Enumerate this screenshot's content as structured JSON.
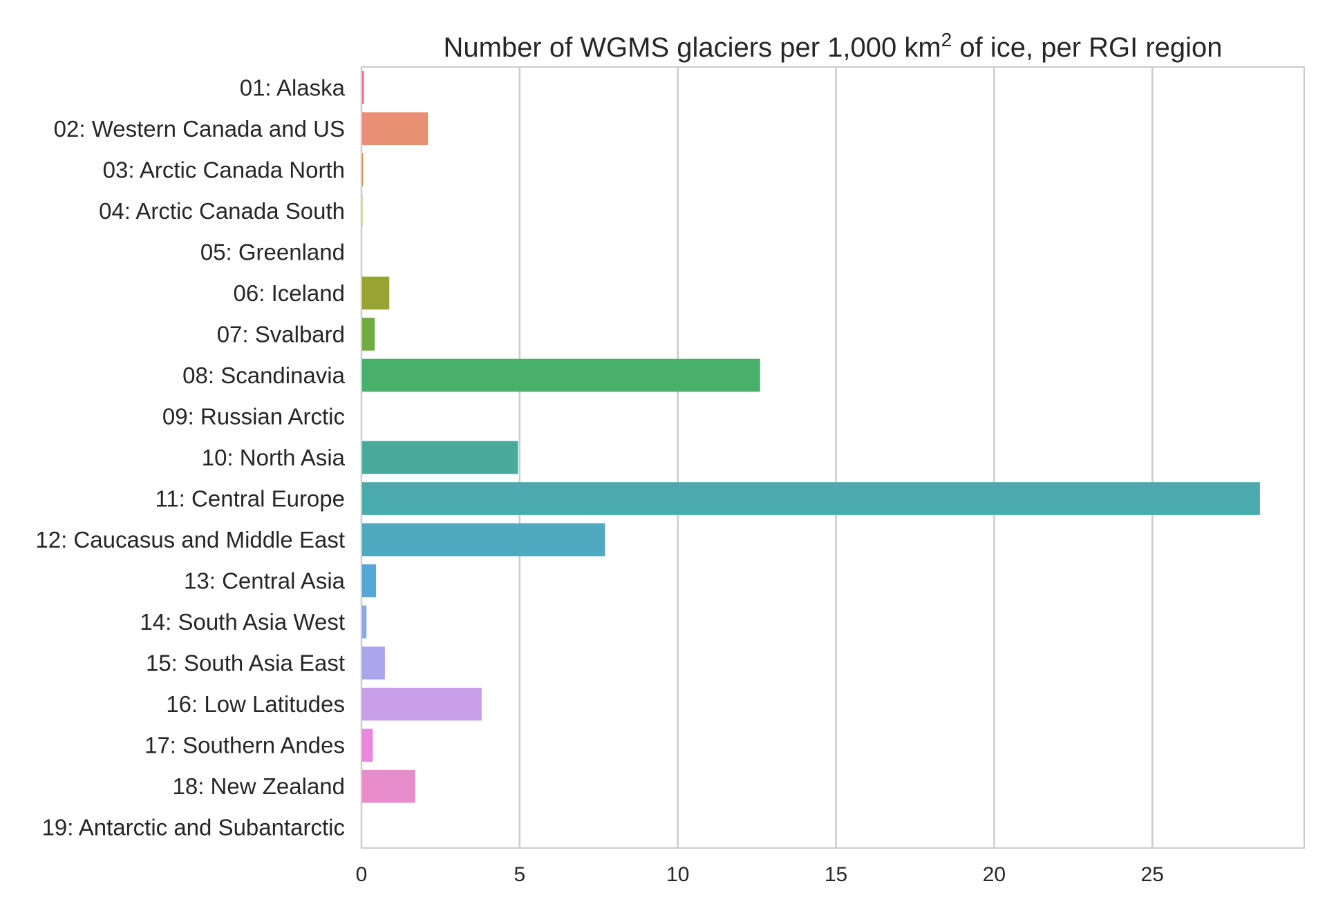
{
  "chart_data": {
    "type": "bar",
    "orientation": "horizontal",
    "title": "Number of WGMS glaciers per 1,000 km",
    "title_superscript": "2",
    "title_suffix": " of ice, per RGI region",
    "xlabel": "",
    "ylabel": "",
    "xlim": [
      0,
      29.8
    ],
    "xticks": [
      "0",
      "5",
      "10",
      "15",
      "20",
      "25"
    ],
    "xtick_values": [
      0,
      5,
      10,
      15,
      20,
      25
    ],
    "grid": "x",
    "legend": "none",
    "categories": [
      "01: Alaska",
      "02: Western Canada and US",
      "03: Arctic Canada North",
      "04: Arctic Canada South",
      "05: Greenland",
      "06: Iceland",
      "07: Svalbard",
      "08: Scandinavia",
      "09: Russian Arctic",
      "10: North Asia",
      "11: Central Europe",
      "12: Caucasus and Middle East",
      "13: Central Asia",
      "14: South Asia West",
      "15: South Asia East",
      "16: Low Latitudes",
      "17: Southern Andes",
      "18: New Zealand",
      "19: Antarctic and Subantarctic"
    ],
    "values": [
      0.08,
      2.1,
      0.05,
      0.03,
      0.02,
      0.88,
      0.42,
      12.6,
      0.0,
      4.95,
      28.4,
      7.7,
      0.46,
      0.16,
      0.74,
      3.8,
      0.36,
      1.7,
      0.0
    ],
    "colors": [
      "#f77189",
      "#e89074",
      "#d8904b",
      "#c79a4a",
      "#b0a249",
      "#97a431",
      "#6fad42",
      "#48b069",
      "#44ad89",
      "#4aab9c",
      "#4aaaad",
      "#4fa9c0",
      "#54a6d6",
      "#8ca8e8",
      "#aaa6ee",
      "#c89fe8",
      "#e888de",
      "#e98ccc",
      "#f0899d"
    ]
  }
}
